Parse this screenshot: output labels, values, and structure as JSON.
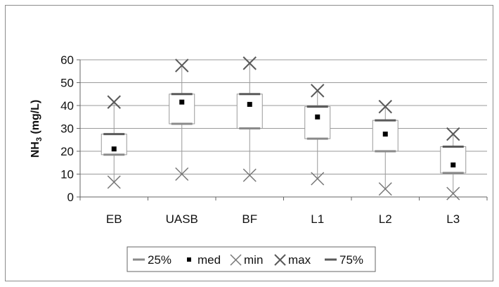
{
  "chart_data": {
    "type": "box",
    "title": "",
    "xlabel": "",
    "ylabel_main": "NH",
    "ylabel_sub": "3",
    "ylabel_unit": " (mg/L)",
    "ylim": [
      0,
      60
    ],
    "yticks": [
      0,
      10,
      20,
      30,
      40,
      50,
      60
    ],
    "grid": true,
    "legend_position": "bottom",
    "categories": [
      "EB",
      "UASB",
      "BF",
      "L1",
      "L2",
      "L3"
    ],
    "series": [
      {
        "name": "25%",
        "values": [
          18.5,
          32,
          30,
          25.5,
          20,
          10.5
        ]
      },
      {
        "name": "med",
        "values": [
          21,
          41.5,
          40.5,
          35,
          27.5,
          14
        ]
      },
      {
        "name": "min",
        "values": [
          6.5,
          10,
          9.5,
          8,
          3.5,
          1.5
        ]
      },
      {
        "name": "max",
        "values": [
          41.5,
          57.5,
          58.5,
          46.5,
          39.5,
          27.5
        ]
      },
      {
        "name": "75%",
        "values": [
          27.5,
          45,
          45,
          39.5,
          33.5,
          22
        ]
      }
    ],
    "colors": {
      "q25": "#8a8a8a",
      "q75": "#5a5a5a",
      "median": "#000000",
      "marker": "#777777",
      "box": "#999999",
      "grid": "#9a9a9a"
    }
  }
}
